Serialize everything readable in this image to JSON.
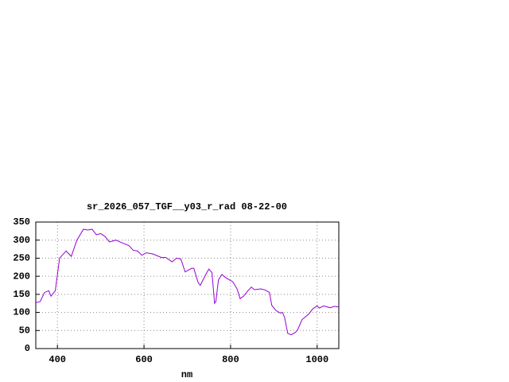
{
  "chart_data": {
    "type": "line",
    "title": "sr_2026_057_TGF__y03_r_rad 08-22-00",
    "x_label": "nm",
    "x": [
      350,
      360,
      370,
      380,
      385,
      395,
      405,
      420,
      432,
      445,
      460,
      470,
      480,
      490,
      500,
      510,
      520,
      535,
      550,
      565,
      575,
      585,
      595,
      605,
      620,
      640,
      650,
      665,
      675,
      685,
      695,
      710,
      715,
      725,
      730,
      745,
      750,
      757,
      763,
      766,
      772,
      780,
      790,
      805,
      815,
      822,
      830,
      840,
      848,
      855,
      870,
      880,
      890,
      895,
      905,
      915,
      920,
      925,
      932,
      940,
      950,
      955,
      965,
      980,
      990,
      1000,
      1005,
      1015,
      1030,
      1040,
      1050
    ],
    "series": [
      {
        "color": "#9400d3",
        "values": [
          127,
          130,
          155,
          160,
          145,
          160,
          250,
          270,
          255,
          300,
          330,
          328,
          330,
          315,
          318,
          310,
          295,
          300,
          292,
          285,
          272,
          270,
          258,
          265,
          262,
          252,
          252,
          240,
          250,
          248,
          212,
          222,
          222,
          183,
          175,
          210,
          220,
          210,
          125,
          130,
          190,
          205,
          195,
          185,
          165,
          138,
          145,
          160,
          170,
          163,
          165,
          162,
          155,
          120,
          105,
          98,
          100,
          85,
          42,
          38,
          45,
          52,
          80,
          95,
          110,
          118,
          112,
          118,
          113,
          117,
          115
        ]
      }
    ],
    "xlim": [
      350,
      1050
    ],
    "ylim": [
      0,
      350
    ],
    "xticks": [
      400,
      600,
      800,
      1000
    ],
    "yticks": [
      0,
      50,
      100,
      150,
      200,
      250,
      300,
      350
    ],
    "grid": true
  }
}
